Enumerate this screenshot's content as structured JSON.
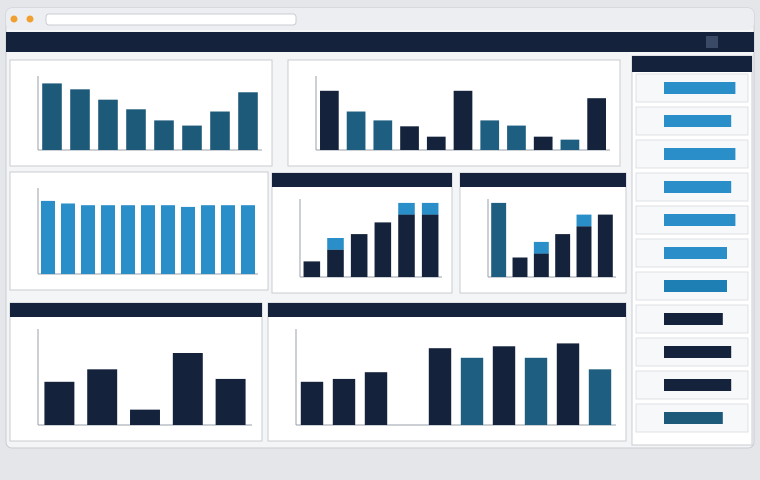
{
  "dashboard": {
    "panels": [
      {
        "ylim": [
          0,
          100
        ],
        "series": [
          {
            "color": "#1d5a7a",
            "values": [
              90,
              82,
              68,
              55,
              40,
              33,
              52,
              78
            ]
          }
        ]
      },
      {
        "ylim": [
          0,
          100
        ],
        "series": [
          {
            "color": "#14223b",
            "values": [
              80,
              0,
              0,
              32,
              18,
              80,
              0,
              0,
              18,
              0,
              70
            ]
          },
          {
            "color": "#1e5e80",
            "values": [
              0,
              52,
              40,
              0,
              0,
              0,
              40,
              33,
              0,
              14,
              0
            ]
          }
        ]
      },
      {
        "ylim": [
          0,
          100
        ],
        "series": [
          {
            "color": "#2a8ec8",
            "values": [
              85,
              82,
              80,
              80,
              80,
              80,
              80,
              78,
              80,
              80,
              80
            ]
          }
        ]
      },
      {
        "ylim": [
          0,
          100
        ],
        "series": [
          {
            "color": "#14223b",
            "values": [
              20,
              35,
              55,
              70,
              80,
              80
            ]
          },
          {
            "color": "#2a8ec8",
            "values": [
              0,
              15,
              0,
              0,
              15,
              15
            ]
          }
        ]
      },
      {
        "ylim": [
          0,
          100
        ],
        "series": [
          {
            "color": "#1e5e80",
            "values": [
              95,
              0,
              0,
              0,
              0,
              0
            ]
          },
          {
            "color": "#14223b",
            "values": [
              0,
              25,
              30,
              55,
              65,
              80
            ]
          },
          {
            "color": "#2a8ec8",
            "values": [
              0,
              0,
              15,
              0,
              15,
              0
            ]
          }
        ]
      },
      {
        "ylim": [
          0,
          100
        ],
        "series": [
          {
            "color": "#14223b",
            "values": [
              45,
              58,
              16,
              75,
              48
            ]
          }
        ]
      },
      {
        "ylim": [
          0,
          100
        ],
        "series": [
          {
            "color": "#14223b",
            "values": [
              45,
              48,
              55,
              0,
              80,
              0,
              82,
              0,
              85,
              0
            ]
          },
          {
            "color": "#1e5e80",
            "values": [
              0,
              0,
              0,
              0,
              0,
              70,
              0,
              70,
              0,
              58
            ]
          }
        ]
      }
    ],
    "sidebar": {
      "xlim": [
        0,
        100
      ],
      "items": [
        {
          "color": "#2a8ec8",
          "value": 85
        },
        {
          "color": "#2a8ec8",
          "value": 80
        },
        {
          "color": "#2a8ec8",
          "value": 85
        },
        {
          "color": "#2a8ec8",
          "value": 80
        },
        {
          "color": "#2a8ec8",
          "value": 85
        },
        {
          "color": "#2a8ec8",
          "value": 75
        },
        {
          "color": "#1e7fb5",
          "value": 75
        },
        {
          "color": "#14223b",
          "value": 70
        },
        {
          "color": "#14223b",
          "value": 80
        },
        {
          "color": "#14223b",
          "value": 80
        },
        {
          "color": "#1d5a7a",
          "value": 70
        }
      ]
    }
  }
}
